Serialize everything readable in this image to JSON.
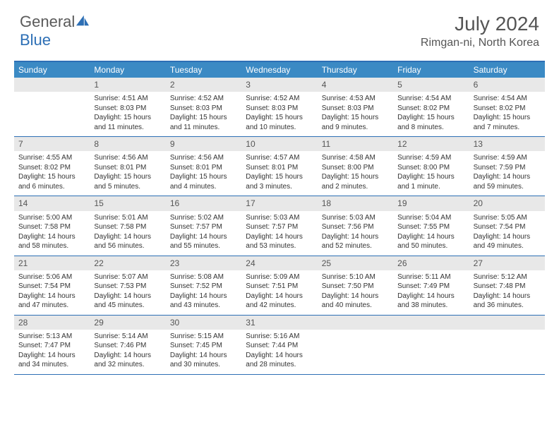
{
  "brand": {
    "part1": "General",
    "part2": "Blue"
  },
  "title": "July 2024",
  "location": "Rimgan-ni, North Korea",
  "colors": {
    "header_bar": "#3b8ac4",
    "border": "#2d6fb5",
    "daynum_bg": "#e8e8e8",
    "text": "#333333",
    "title_text": "#555555",
    "white": "#ffffff"
  },
  "day_headers": [
    "Sunday",
    "Monday",
    "Tuesday",
    "Wednesday",
    "Thursday",
    "Friday",
    "Saturday"
  ],
  "weeks": [
    [
      {
        "num": "",
        "sunrise": "",
        "sunset": "",
        "daylight": ""
      },
      {
        "num": "1",
        "sunrise": "Sunrise: 4:51 AM",
        "sunset": "Sunset: 8:03 PM",
        "daylight": "Daylight: 15 hours and 11 minutes."
      },
      {
        "num": "2",
        "sunrise": "Sunrise: 4:52 AM",
        "sunset": "Sunset: 8:03 PM",
        "daylight": "Daylight: 15 hours and 11 minutes."
      },
      {
        "num": "3",
        "sunrise": "Sunrise: 4:52 AM",
        "sunset": "Sunset: 8:03 PM",
        "daylight": "Daylight: 15 hours and 10 minutes."
      },
      {
        "num": "4",
        "sunrise": "Sunrise: 4:53 AM",
        "sunset": "Sunset: 8:03 PM",
        "daylight": "Daylight: 15 hours and 9 minutes."
      },
      {
        "num": "5",
        "sunrise": "Sunrise: 4:54 AM",
        "sunset": "Sunset: 8:02 PM",
        "daylight": "Daylight: 15 hours and 8 minutes."
      },
      {
        "num": "6",
        "sunrise": "Sunrise: 4:54 AM",
        "sunset": "Sunset: 8:02 PM",
        "daylight": "Daylight: 15 hours and 7 minutes."
      }
    ],
    [
      {
        "num": "7",
        "sunrise": "Sunrise: 4:55 AM",
        "sunset": "Sunset: 8:02 PM",
        "daylight": "Daylight: 15 hours and 6 minutes."
      },
      {
        "num": "8",
        "sunrise": "Sunrise: 4:56 AM",
        "sunset": "Sunset: 8:01 PM",
        "daylight": "Daylight: 15 hours and 5 minutes."
      },
      {
        "num": "9",
        "sunrise": "Sunrise: 4:56 AM",
        "sunset": "Sunset: 8:01 PM",
        "daylight": "Daylight: 15 hours and 4 minutes."
      },
      {
        "num": "10",
        "sunrise": "Sunrise: 4:57 AM",
        "sunset": "Sunset: 8:01 PM",
        "daylight": "Daylight: 15 hours and 3 minutes."
      },
      {
        "num": "11",
        "sunrise": "Sunrise: 4:58 AM",
        "sunset": "Sunset: 8:00 PM",
        "daylight": "Daylight: 15 hours and 2 minutes."
      },
      {
        "num": "12",
        "sunrise": "Sunrise: 4:59 AM",
        "sunset": "Sunset: 8:00 PM",
        "daylight": "Daylight: 15 hours and 1 minute."
      },
      {
        "num": "13",
        "sunrise": "Sunrise: 4:59 AM",
        "sunset": "Sunset: 7:59 PM",
        "daylight": "Daylight: 14 hours and 59 minutes."
      }
    ],
    [
      {
        "num": "14",
        "sunrise": "Sunrise: 5:00 AM",
        "sunset": "Sunset: 7:58 PM",
        "daylight": "Daylight: 14 hours and 58 minutes."
      },
      {
        "num": "15",
        "sunrise": "Sunrise: 5:01 AM",
        "sunset": "Sunset: 7:58 PM",
        "daylight": "Daylight: 14 hours and 56 minutes."
      },
      {
        "num": "16",
        "sunrise": "Sunrise: 5:02 AM",
        "sunset": "Sunset: 7:57 PM",
        "daylight": "Daylight: 14 hours and 55 minutes."
      },
      {
        "num": "17",
        "sunrise": "Sunrise: 5:03 AM",
        "sunset": "Sunset: 7:57 PM",
        "daylight": "Daylight: 14 hours and 53 minutes."
      },
      {
        "num": "18",
        "sunrise": "Sunrise: 5:03 AM",
        "sunset": "Sunset: 7:56 PM",
        "daylight": "Daylight: 14 hours and 52 minutes."
      },
      {
        "num": "19",
        "sunrise": "Sunrise: 5:04 AM",
        "sunset": "Sunset: 7:55 PM",
        "daylight": "Daylight: 14 hours and 50 minutes."
      },
      {
        "num": "20",
        "sunrise": "Sunrise: 5:05 AM",
        "sunset": "Sunset: 7:54 PM",
        "daylight": "Daylight: 14 hours and 49 minutes."
      }
    ],
    [
      {
        "num": "21",
        "sunrise": "Sunrise: 5:06 AM",
        "sunset": "Sunset: 7:54 PM",
        "daylight": "Daylight: 14 hours and 47 minutes."
      },
      {
        "num": "22",
        "sunrise": "Sunrise: 5:07 AM",
        "sunset": "Sunset: 7:53 PM",
        "daylight": "Daylight: 14 hours and 45 minutes."
      },
      {
        "num": "23",
        "sunrise": "Sunrise: 5:08 AM",
        "sunset": "Sunset: 7:52 PM",
        "daylight": "Daylight: 14 hours and 43 minutes."
      },
      {
        "num": "24",
        "sunrise": "Sunrise: 5:09 AM",
        "sunset": "Sunset: 7:51 PM",
        "daylight": "Daylight: 14 hours and 42 minutes."
      },
      {
        "num": "25",
        "sunrise": "Sunrise: 5:10 AM",
        "sunset": "Sunset: 7:50 PM",
        "daylight": "Daylight: 14 hours and 40 minutes."
      },
      {
        "num": "26",
        "sunrise": "Sunrise: 5:11 AM",
        "sunset": "Sunset: 7:49 PM",
        "daylight": "Daylight: 14 hours and 38 minutes."
      },
      {
        "num": "27",
        "sunrise": "Sunrise: 5:12 AM",
        "sunset": "Sunset: 7:48 PM",
        "daylight": "Daylight: 14 hours and 36 minutes."
      }
    ],
    [
      {
        "num": "28",
        "sunrise": "Sunrise: 5:13 AM",
        "sunset": "Sunset: 7:47 PM",
        "daylight": "Daylight: 14 hours and 34 minutes."
      },
      {
        "num": "29",
        "sunrise": "Sunrise: 5:14 AM",
        "sunset": "Sunset: 7:46 PM",
        "daylight": "Daylight: 14 hours and 32 minutes."
      },
      {
        "num": "30",
        "sunrise": "Sunrise: 5:15 AM",
        "sunset": "Sunset: 7:45 PM",
        "daylight": "Daylight: 14 hours and 30 minutes."
      },
      {
        "num": "31",
        "sunrise": "Sunrise: 5:16 AM",
        "sunset": "Sunset: 7:44 PM",
        "daylight": "Daylight: 14 hours and 28 minutes."
      },
      {
        "num": "",
        "sunrise": "",
        "sunset": "",
        "daylight": ""
      },
      {
        "num": "",
        "sunrise": "",
        "sunset": "",
        "daylight": ""
      },
      {
        "num": "",
        "sunrise": "",
        "sunset": "",
        "daylight": ""
      }
    ]
  ]
}
